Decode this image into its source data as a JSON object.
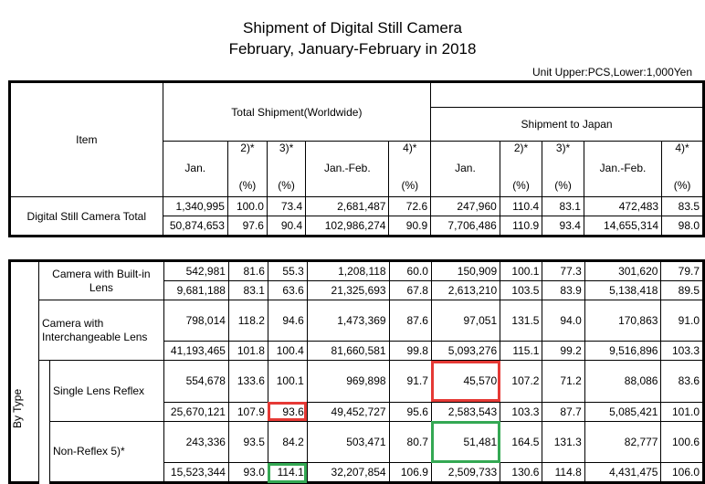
{
  "title": {
    "line1": "Shipment of Digital Still Camera",
    "line2": "February, January-February in 2018"
  },
  "unit": "Unit Upper:PCS,Lower:1,000Yen",
  "header": {
    "item": "Item",
    "total_group": "Total Shipment(Worldwide)",
    "japan_group": "Shipment to Japan",
    "jan": "Jan.",
    "janfeb": "Jan.-Feb.",
    "c2": "2)*",
    "c3": "3)*",
    "c4": "4)*",
    "pct": "(%)"
  },
  "by_type": "By Type",
  "total": {
    "label": "Digital Still Camera Total",
    "upper": [
      "1,340,995",
      "100.0",
      "73.4",
      "2,681,487",
      "72.6",
      "247,960",
      "110.4",
      "83.1",
      "472,483",
      "83.5"
    ],
    "lower": [
      "50,874,653",
      "97.6",
      "90.4",
      "102,986,274",
      "90.9",
      "7,706,486",
      "110.9",
      "93.4",
      "14,655,314",
      "98.0"
    ]
  },
  "builtin": {
    "label": "Camera with Built-in Lens",
    "upper": [
      "542,981",
      "81.6",
      "55.3",
      "1,208,118",
      "60.0",
      "150,909",
      "100.1",
      "77.3",
      "301,620",
      "79.7"
    ],
    "lower": [
      "9,681,188",
      "83.1",
      "63.6",
      "21,325,693",
      "67.8",
      "2,613,210",
      "103.5",
      "83.9",
      "5,138,418",
      "89.5"
    ]
  },
  "interchangeable": {
    "label": "Camera with Interchangeable Lens",
    "upper": [
      "798,014",
      "118.2",
      "94.6",
      "1,473,369",
      "87.6",
      "97,051",
      "131.5",
      "94.0",
      "170,863",
      "91.0"
    ],
    "lower": [
      "41,193,465",
      "101.8",
      "100.4",
      "81,660,581",
      "99.8",
      "5,093,276",
      "115.1",
      "99.2",
      "9,516,896",
      "103.3"
    ]
  },
  "slr": {
    "label": "Single Lens Reflex",
    "upper": [
      "554,678",
      "133.6",
      "100.1",
      "969,898",
      "91.7",
      "45,570",
      "107.2",
      "71.2",
      "88,086",
      "83.6"
    ],
    "lower": [
      "25,670,121",
      "107.9",
      "93.6",
      "49,452,727",
      "95.6",
      "2,583,543",
      "103.3",
      "87.7",
      "5,085,421",
      "101.0"
    ]
  },
  "nonreflex": {
    "label": "Non-Reflex 5)*",
    "upper": [
      "243,336",
      "93.5",
      "84.2",
      "503,471",
      "80.7",
      "51,481",
      "164.5",
      "131.3",
      "82,777",
      "100.6"
    ],
    "lower": [
      "15,523,344",
      "93.0",
      "114.1",
      "32,207,854",
      "106.9",
      "2,509,733",
      "130.6",
      "114.8",
      "4,431,475",
      "106.0"
    ]
  },
  "highlight_colors": {
    "red": "#e53935",
    "green": "#34a853"
  }
}
